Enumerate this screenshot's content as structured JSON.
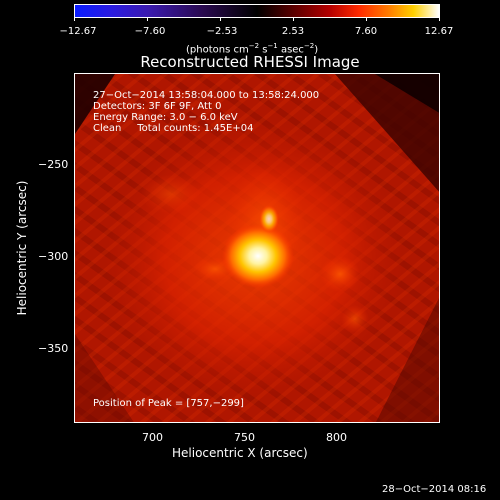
{
  "colorbar": {
    "tick_labels": [
      "−12.67",
      "−7.60",
      "−2.53",
      "2.53",
      "7.60",
      "12.67"
    ],
    "units_main": "(photons cm",
    "units_sup1": "−2",
    "units_mid": " s",
    "units_sup2": "−1",
    "units_mid2": " asec",
    "units_sup3": "−2",
    "units_end": ")"
  },
  "title": "Reconstructed RHESSI Image",
  "info": {
    "time_range": "27−Oct−2014 13:58:04.000 to 13:58:24.000",
    "detectors": "Detectors: 3F 6F 9F, Att 0",
    "energy_range": "Energy Range: 3.0 − 6.0 keV",
    "clean_counts": "Clean     Total counts: 1.45E+04",
    "peak_position": "Position of Peak = [757,−299]"
  },
  "x_axis": {
    "title": "Heliocentric X (arcsec)",
    "ticks": [
      "700",
      "750",
      "800"
    ]
  },
  "y_axis": {
    "title": "Heliocentric Y (arcsec)",
    "ticks": [
      "−250",
      "−300",
      "−350"
    ]
  },
  "footer_timestamp": "28−Oct−2014 08:16",
  "colors": {
    "background": "#000000",
    "peak": "#ffffff",
    "core": "#ffd000",
    "mid": "#ff3a00",
    "outer": "#b31400"
  }
}
